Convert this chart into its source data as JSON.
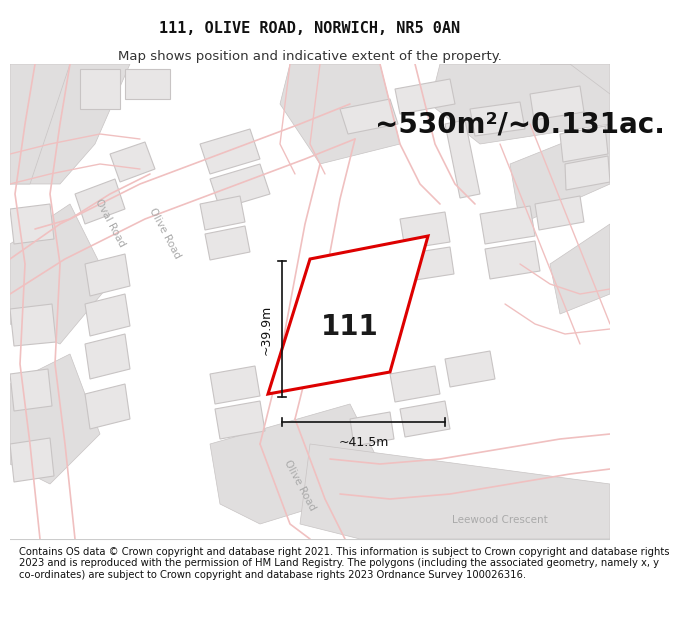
{
  "title_line1": "111, OLIVE ROAD, NORWICH, NR5 0AN",
  "title_line2": "Map shows position and indicative extent of the property.",
  "area_text": "~530m²/~0.131ac.",
  "property_number": "111",
  "dim_vertical": "~39.9m",
  "dim_horizontal": "~41.5m",
  "footer_text": "Contains OS data © Crown copyright and database right 2021. This information is subject to Crown copyright and database rights 2023 and is reproduced with the permission of HM Land Registry. The polygons (including the associated geometry, namely x, y co-ordinates) are subject to Crown copyright and database rights 2023 Ordnance Survey 100026316.",
  "map_bg": "#f7f6f6",
  "road_color": "#f0c0c0",
  "road_outline": "#e8a0a0",
  "building_fill": "#e8e6e6",
  "building_edge": "#c8c4c4",
  "road_grey_fill": "#e0dede",
  "road_grey_edge": "#c8c4c4",
  "property_fill": "#ffffff",
  "property_edge": "#dd0000",
  "dim_color": "#111111",
  "title_fontsize": 11,
  "subtitle_fontsize": 9.5,
  "area_fontsize": 20,
  "number_fontsize": 20,
  "dim_fontsize": 9,
  "footer_fontsize": 7.2,
  "road_label_color": "#aaaaaa",
  "road_label_fontsize": 7.5,
  "footer_bg": "#ffffff",
  "title_bg": "#ffffff"
}
